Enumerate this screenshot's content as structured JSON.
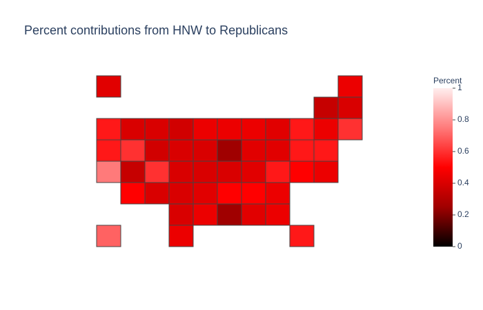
{
  "chart_data": {
    "type": "choropleth",
    "title": "Percent contributions from HNW to Republicans",
    "colorbar_title": "Percent",
    "locations": [
      "AK",
      "ME",
      "VT",
      "NH",
      "WA",
      "ID",
      "MT",
      "ND",
      "MN",
      "IL",
      "WI",
      "MI",
      "NY",
      "RI",
      "MA",
      "OR",
      "NV",
      "WY",
      "SD",
      "IA",
      "IN",
      "OH",
      "PA",
      "NJ",
      "CT",
      "CA",
      "UT",
      "CO",
      "NE",
      "MO",
      "KY",
      "WV",
      "VA",
      "MD",
      "DE",
      "AZ",
      "NM",
      "KS",
      "AR",
      "TN",
      "NC",
      "SC",
      "OK",
      "LA",
      "MS",
      "AL",
      "GA",
      "HI",
      "TX",
      "FL"
    ],
    "values": [
      0.42,
      0.45,
      0.35,
      0.4,
      0.55,
      0.4,
      0.4,
      0.38,
      0.45,
      0.45,
      0.45,
      0.42,
      0.55,
      0.45,
      0.6,
      0.55,
      0.6,
      0.38,
      0.4,
      0.4,
      0.25,
      0.42,
      0.42,
      0.55,
      0.55,
      0.75,
      0.35,
      0.6,
      0.4,
      0.4,
      0.4,
      0.42,
      0.55,
      0.5,
      0.45,
      0.5,
      0.4,
      0.4,
      0.42,
      0.5,
      0.5,
      0.45,
      0.4,
      0.45,
      0.25,
      0.42,
      0.45,
      0.7,
      0.45,
      0.55
    ],
    "colorscale": [
      [
        0,
        "#000000"
      ],
      [
        0.25,
        "#a00000"
      ],
      [
        0.5,
        "#ff0000"
      ],
      [
        0.75,
        "#ff7a7a"
      ],
      [
        1,
        "#ffeeee"
      ]
    ],
    "zlim": [
      0,
      1
    ],
    "ticks": [
      0,
      0.2,
      0.4,
      0.6,
      0.8,
      1
    ]
  }
}
